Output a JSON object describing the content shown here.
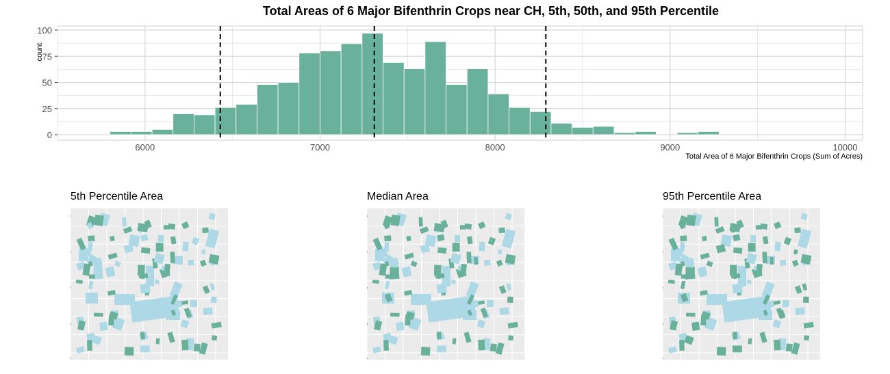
{
  "chart_data": [
    {
      "type": "bar",
      "subtype": "histogram",
      "title": "Total Areas of 6 Major Bifenthrin Crops near CH, 5th, 50th, and 95th Percentile",
      "xlabel": "Total Area of 6 Major Bifenthrin Crops (Sum of Acres)",
      "ylabel": "count",
      "xlim": [
        5500,
        10100
      ],
      "ylim": [
        0,
        100
      ],
      "xticks": [
        6000,
        7000,
        8000,
        9000,
        10000
      ],
      "yticks": [
        0,
        25,
        50,
        75,
        100
      ],
      "bin_width": 120,
      "bins_start": [
        5800,
        5920,
        6040,
        6160,
        6280,
        6400,
        6520,
        6640,
        6760,
        6880,
        7000,
        7120,
        7240,
        7360,
        7480,
        7600,
        7720,
        7840,
        7960,
        8080,
        8200,
        8320,
        8440,
        8560,
        8680,
        8800,
        8920,
        9040,
        9160,
        9280
      ],
      "counts": [
        3,
        3,
        5,
        20,
        19,
        26,
        29,
        48,
        50,
        78,
        80,
        87,
        97,
        69,
        63,
        89,
        48,
        63,
        39,
        26,
        22,
        11,
        7,
        8,
        2,
        3,
        0,
        2,
        3,
        0
      ],
      "bar_color": "#6ab19c",
      "percentile_lines": [
        {
          "label": "5th",
          "value": 6430
        },
        {
          "label": "50th",
          "value": 7310
        },
        {
          "label": "95th",
          "value": 8290
        }
      ],
      "grid": true
    },
    {
      "type": "map",
      "title": "5th Percentile Area",
      "colors": {
        "background": "#ebebeb",
        "crop": "#6ab19c",
        "other": "#add8e6"
      }
    },
    {
      "type": "map",
      "title": "Median Area",
      "colors": {
        "background": "#ebebeb",
        "crop": "#6ab19c",
        "other": "#add8e6"
      }
    },
    {
      "type": "map",
      "title": "95th Percentile Area",
      "colors": {
        "background": "#ebebeb",
        "crop": "#6ab19c",
        "other": "#add8e6"
      }
    }
  ]
}
